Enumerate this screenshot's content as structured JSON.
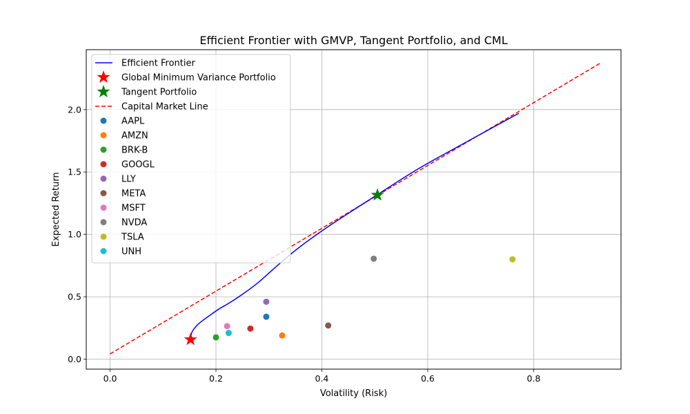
{
  "chart_data": {
    "type": "scatter",
    "title": "Efficient Frontier with GMVP, Tangent Portfolio, and CML",
    "xlabel": "Volatility (Risk)",
    "ylabel": "Expected Return",
    "xlim": [
      -0.045,
      0.965
    ],
    "ylim": [
      -0.08,
      2.48
    ],
    "x_ticks": [
      0.0,
      0.2,
      0.4,
      0.6,
      0.8
    ],
    "y_ticks": [
      0.0,
      0.5,
      1.0,
      1.5,
      2.0
    ],
    "x_tick_labels": [
      "0.0",
      "0.2",
      "0.4",
      "0.6",
      "0.8"
    ],
    "y_tick_labels": [
      "0.0",
      "0.5",
      "1.0",
      "1.5",
      "2.0"
    ],
    "grid": true,
    "legend_position": "top-left",
    "frontier": {
      "name": "Efficient Frontier",
      "color": "#0000ff",
      "points": [
        [
          0.152,
          0.175
        ],
        [
          0.154,
          0.21
        ],
        [
          0.158,
          0.24
        ],
        [
          0.165,
          0.275
        ],
        [
          0.175,
          0.31
        ],
        [
          0.188,
          0.35
        ],
        [
          0.205,
          0.4
        ],
        [
          0.225,
          0.45
        ],
        [
          0.25,
          0.52
        ],
        [
          0.28,
          0.615
        ],
        [
          0.32,
          0.765
        ],
        [
          0.36,
          0.905
        ],
        [
          0.42,
          1.085
        ],
        [
          0.5,
          1.305
        ],
        [
          0.58,
          1.52
        ],
        [
          0.66,
          1.71
        ],
        [
          0.72,
          1.85
        ],
        [
          0.772,
          1.97
        ]
      ]
    },
    "gmvp": {
      "name": "Global Minimum Variance Portfolio",
      "x": 0.152,
      "y": 0.157,
      "color": "#ff0000"
    },
    "tangent": {
      "name": "Tangent Portfolio",
      "x": 0.505,
      "y": 1.315,
      "color": "#008000"
    },
    "cml": {
      "name": "Capital Market Line",
      "color": "#ff0000",
      "x": [
        0.0,
        0.925
      ],
      "y": [
        0.042,
        2.37
      ]
    },
    "assets": [
      {
        "name": "AAPL",
        "x": 0.295,
        "y": 0.34,
        "color": "#1f77b4"
      },
      {
        "name": "AMZN",
        "x": 0.325,
        "y": 0.19,
        "color": "#ff7f0e"
      },
      {
        "name": "BRK-B",
        "x": 0.2,
        "y": 0.175,
        "color": "#2ca02c"
      },
      {
        "name": "GOOGL",
        "x": 0.265,
        "y": 0.245,
        "color": "#d62728"
      },
      {
        "name": "LLY",
        "x": 0.295,
        "y": 0.46,
        "color": "#9467bd"
      },
      {
        "name": "META",
        "x": 0.412,
        "y": 0.27,
        "color": "#8c564b"
      },
      {
        "name": "MSFT",
        "x": 0.221,
        "y": 0.265,
        "color": "#e377c2"
      },
      {
        "name": "NVDA",
        "x": 0.498,
        "y": 0.805,
        "color": "#7f7f7f"
      },
      {
        "name": "TSLA",
        "x": 0.76,
        "y": 0.8,
        "color": "#bcbd22"
      },
      {
        "name": "UNH",
        "x": 0.224,
        "y": 0.21,
        "color": "#17becf"
      }
    ]
  }
}
